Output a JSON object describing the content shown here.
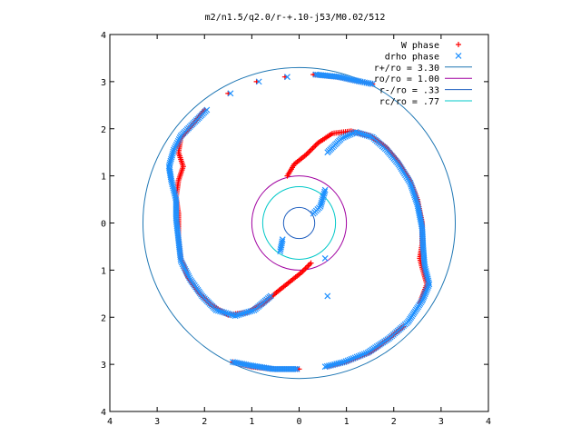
{
  "chart_data": {
    "type": "scatter",
    "title": "m2/n1.5/q2.0/r-+.10-j53/M0.02/512",
    "xlabel": "",
    "ylabel": "",
    "xlim": [
      -4,
      4
    ],
    "ylim": [
      -4,
      4
    ],
    "x_tick_labels": [
      "4",
      "3",
      "2",
      "1",
      "0",
      "1",
      "2",
      "3",
      "4"
    ],
    "y_tick_labels": [
      "4",
      "3",
      "2",
      "1",
      "0",
      "1",
      "2",
      "3",
      "4"
    ],
    "grid": false,
    "legend_position": "top-right",
    "legend": [
      {
        "label": "W phase",
        "symbol": "plus",
        "color": "#ff0000"
      },
      {
        "label": "drho phase",
        "symbol": "cross",
        "color": "#1e90ff"
      },
      {
        "label": "r+/ro = 3.30",
        "symbol": "line",
        "color": "#1f77b4"
      },
      {
        "label": "ro/ro = 1.00",
        "symbol": "line",
        "color": "#a000a0"
      },
      {
        "label": "r-/ro = .33",
        "symbol": "line",
        "color": "#1f5fbf"
      },
      {
        "label": "rc/ro = .77",
        "symbol": "line",
        "color": "#00c8c8"
      }
    ],
    "circles": [
      {
        "name": "r+/ro",
        "radius": 3.3,
        "color": "#1f77b4"
      },
      {
        "name": "ro/ro",
        "radius": 1.0,
        "color": "#a000a0"
      },
      {
        "name": "r-/ro",
        "radius": 0.33,
        "color": "#1f5fbf"
      },
      {
        "name": "rc/ro",
        "radius": 0.77,
        "color": "#00c8c8"
      }
    ],
    "series": [
      {
        "name": "W phase",
        "symbol": "plus",
        "color": "#ff0000",
        "points": [
          [
            -0.25,
            1.0
          ],
          [
            -0.1,
            1.25
          ],
          [
            0.15,
            1.45
          ],
          [
            0.4,
            1.7
          ],
          [
            0.7,
            1.9
          ],
          [
            1.1,
            1.95
          ],
          [
            1.5,
            1.85
          ],
          [
            1.85,
            1.6
          ],
          [
            2.1,
            1.3
          ],
          [
            2.35,
            0.9
          ],
          [
            2.5,
            0.5
          ],
          [
            2.6,
            0.0
          ],
          [
            2.6,
            -0.45
          ],
          [
            2.55,
            -0.75
          ],
          [
            2.6,
            -0.95
          ],
          [
            2.7,
            -1.3
          ],
          [
            2.55,
            -1.7
          ],
          [
            2.2,
            -2.2
          ],
          [
            1.9,
            -2.45
          ],
          [
            1.5,
            -2.75
          ],
          [
            1.0,
            -2.95
          ],
          [
            0.6,
            -3.05
          ],
          [
            0.0,
            -3.1
          ],
          [
            -0.5,
            -3.1
          ],
          [
            -1.0,
            -3.05
          ],
          [
            -1.4,
            -2.95
          ],
          [
            0.25,
            -0.85
          ],
          [
            0.05,
            -1.05
          ],
          [
            -0.2,
            -1.25
          ],
          [
            -0.45,
            -1.45
          ],
          [
            -0.75,
            -1.7
          ],
          [
            -1.1,
            -1.9
          ],
          [
            -1.5,
            -1.95
          ],
          [
            -1.85,
            -1.75
          ],
          [
            -2.1,
            -1.5
          ],
          [
            -2.35,
            -1.15
          ],
          [
            -2.5,
            -0.75
          ],
          [
            -2.55,
            -0.3
          ],
          [
            -2.55,
            0.2
          ],
          [
            -2.6,
            0.55
          ],
          [
            -2.55,
            0.9
          ],
          [
            -2.45,
            1.2
          ],
          [
            -2.55,
            1.5
          ],
          [
            -2.5,
            1.8
          ],
          [
            -2.2,
            2.15
          ],
          [
            -2.0,
            2.4
          ],
          [
            -1.5,
            2.75
          ],
          [
            -0.9,
            3.0
          ],
          [
            -0.3,
            3.1
          ],
          [
            0.3,
            3.15
          ],
          [
            0.8,
            3.1
          ],
          [
            1.3,
            3.0
          ],
          [
            1.55,
            2.95
          ]
        ]
      },
      {
        "name": "drho phase",
        "symbol": "cross",
        "color": "#1e90ff",
        "points": [
          [
            0.6,
            1.5
          ],
          [
            0.9,
            1.8
          ],
          [
            1.2,
            1.93
          ],
          [
            1.55,
            1.82
          ],
          [
            1.85,
            1.55
          ],
          [
            2.1,
            1.25
          ],
          [
            2.35,
            0.85
          ],
          [
            2.5,
            0.4
          ],
          [
            2.6,
            -0.1
          ],
          [
            2.62,
            -0.5
          ],
          [
            2.65,
            -0.9
          ],
          [
            2.75,
            -1.3
          ],
          [
            2.6,
            -1.65
          ],
          [
            2.3,
            -2.1
          ],
          [
            1.9,
            -2.45
          ],
          [
            1.45,
            -2.75
          ],
          [
            0.95,
            -2.95
          ],
          [
            0.55,
            -3.05
          ],
          [
            -0.05,
            -3.1
          ],
          [
            -0.55,
            -3.1
          ],
          [
            -1.05,
            -3.02
          ],
          [
            -1.4,
            -2.95
          ],
          [
            0.55,
            0.7
          ],
          [
            0.45,
            0.35
          ],
          [
            0.3,
            0.2
          ],
          [
            -0.35,
            -0.35
          ],
          [
            -0.4,
            -0.6
          ],
          [
            -0.6,
            -1.55
          ],
          [
            -0.95,
            -1.85
          ],
          [
            -1.35,
            -1.97
          ],
          [
            -1.75,
            -1.85
          ],
          [
            -2.05,
            -1.55
          ],
          [
            -2.3,
            -1.2
          ],
          [
            -2.5,
            -0.8
          ],
          [
            -2.55,
            -0.35
          ],
          [
            -2.6,
            0.1
          ],
          [
            -2.6,
            0.5
          ],
          [
            -2.7,
            0.9
          ],
          [
            -2.75,
            1.2
          ],
          [
            -2.65,
            1.55
          ],
          [
            -2.5,
            1.85
          ],
          [
            -2.2,
            2.15
          ],
          [
            -1.95,
            2.4
          ],
          [
            -1.45,
            2.75
          ],
          [
            -0.85,
            3.0
          ],
          [
            -0.25,
            3.1
          ],
          [
            0.35,
            3.15
          ],
          [
            0.85,
            3.1
          ],
          [
            1.3,
            3.0
          ],
          [
            1.55,
            2.95
          ],
          [
            0.55,
            -0.75
          ],
          [
            0.6,
            -1.55
          ]
        ]
      }
    ]
  }
}
